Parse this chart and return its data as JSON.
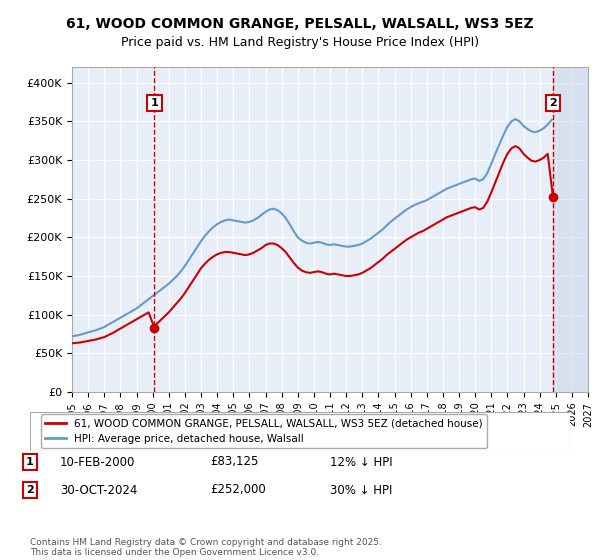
{
  "title": "61, WOOD COMMON GRANGE, PELSALL, WALSALL, WS3 5EZ",
  "subtitle": "Price paid vs. HM Land Registry's House Price Index (HPI)",
  "xlabel": "",
  "ylabel": "",
  "ylim": [
    0,
    420000
  ],
  "yticks": [
    0,
    50000,
    100000,
    150000,
    200000,
    250000,
    300000,
    350000,
    400000
  ],
  "ytick_labels": [
    "£0",
    "£50K",
    "£100K",
    "£150K",
    "£200K",
    "£250K",
    "£300K",
    "£350K",
    "£400K"
  ],
  "xlim_start": 1995.0,
  "xlim_end": 2027.0,
  "bg_color": "#e8eef8",
  "plot_bg": "#e8eef8",
  "grid_color": "#ffffff",
  "sale1_date": 2000.11,
  "sale1_price": 83125,
  "sale1_label": "1",
  "sale2_date": 2024.83,
  "sale2_price": 252000,
  "sale2_label": "2",
  "red_line_color": "#cc0000",
  "blue_line_color": "#6699cc",
  "annotation_box_color": "#cc0000",
  "legend_label_red": "61, WOOD COMMON GRANGE, PELSALL, WALSALL, WS3 5EZ (detached house)",
  "legend_label_blue": "HPI: Average price, detached house, Walsall",
  "footnote1": "1    10-FEB-2000         £83,125         12% ↓ HPI",
  "footnote2": "2    30-OCT-2024         £252,000       30% ↓ HPI",
  "copyright": "Contains HM Land Registry data © Crown copyright and database right 2025.\nThis data is licensed under the Open Government Licence v3.0.",
  "hpi_years": [
    1995.0,
    1995.25,
    1995.5,
    1995.75,
    1996.0,
    1996.25,
    1996.5,
    1996.75,
    1997.0,
    1997.25,
    1997.5,
    1997.75,
    1998.0,
    1998.25,
    1998.5,
    1998.75,
    1999.0,
    1999.25,
    1999.5,
    1999.75,
    2000.0,
    2000.25,
    2000.5,
    2000.75,
    2001.0,
    2001.25,
    2001.5,
    2001.75,
    2002.0,
    2002.25,
    2002.5,
    2002.75,
    2003.0,
    2003.25,
    2003.5,
    2003.75,
    2004.0,
    2004.25,
    2004.5,
    2004.75,
    2005.0,
    2005.25,
    2005.5,
    2005.75,
    2006.0,
    2006.25,
    2006.5,
    2006.75,
    2007.0,
    2007.25,
    2007.5,
    2007.75,
    2008.0,
    2008.25,
    2008.5,
    2008.75,
    2009.0,
    2009.25,
    2009.5,
    2009.75,
    2010.0,
    2010.25,
    2010.5,
    2010.75,
    2011.0,
    2011.25,
    2011.5,
    2011.75,
    2012.0,
    2012.25,
    2012.5,
    2012.75,
    2013.0,
    2013.25,
    2013.5,
    2013.75,
    2014.0,
    2014.25,
    2014.5,
    2014.75,
    2015.0,
    2015.25,
    2015.5,
    2015.75,
    2016.0,
    2016.25,
    2016.5,
    2016.75,
    2017.0,
    2017.25,
    2017.5,
    2017.75,
    2018.0,
    2018.25,
    2018.5,
    2018.75,
    2019.0,
    2019.25,
    2019.5,
    2019.75,
    2020.0,
    2020.25,
    2020.5,
    2020.75,
    2021.0,
    2021.25,
    2021.5,
    2021.75,
    2022.0,
    2022.25,
    2022.5,
    2022.75,
    2023.0,
    2023.25,
    2023.5,
    2023.75,
    2024.0,
    2024.25,
    2024.5,
    2024.75
  ],
  "hpi_values": [
    72000,
    73000,
    74000,
    75500,
    77000,
    78500,
    80000,
    82000,
    84000,
    87000,
    90000,
    93000,
    96000,
    99000,
    102000,
    105000,
    108000,
    112000,
    116000,
    120000,
    124000,
    128000,
    132000,
    136000,
    140000,
    145000,
    150000,
    156000,
    163000,
    171000,
    179000,
    187000,
    195000,
    202000,
    208000,
    213000,
    217000,
    220000,
    222000,
    223000,
    222000,
    221000,
    220000,
    219000,
    220000,
    222000,
    225000,
    229000,
    233000,
    236000,
    237000,
    235000,
    231000,
    225000,
    217000,
    208000,
    200000,
    196000,
    193000,
    192000,
    193000,
    194000,
    193000,
    191000,
    190000,
    191000,
    190000,
    189000,
    188000,
    188000,
    189000,
    190000,
    192000,
    195000,
    198000,
    202000,
    206000,
    210000,
    215000,
    220000,
    224000,
    228000,
    232000,
    236000,
    239000,
    242000,
    244000,
    246000,
    248000,
    251000,
    254000,
    257000,
    260000,
    263000,
    265000,
    267000,
    269000,
    271000,
    273000,
    275000,
    276000,
    273000,
    275000,
    283000,
    295000,
    308000,
    320000,
    332000,
    343000,
    350000,
    353000,
    350000,
    344000,
    340000,
    337000,
    336000,
    338000,
    341000,
    346000,
    352000
  ],
  "red_years": [
    1995.0,
    1995.25,
    1995.5,
    1995.75,
    1996.0,
    1996.25,
    1996.5,
    1996.75,
    1997.0,
    1997.25,
    1997.5,
    1997.75,
    1998.0,
    1998.25,
    1998.5,
    1998.75,
    1999.0,
    1999.25,
    1999.5,
    1999.75,
    2000.11,
    2000.25,
    2000.5,
    2000.75,
    2001.0,
    2001.25,
    2001.5,
    2001.75,
    2002.0,
    2002.25,
    2002.5,
    2002.75,
    2003.0,
    2003.25,
    2003.5,
    2003.75,
    2004.0,
    2004.25,
    2004.5,
    2004.75,
    2005.0,
    2005.25,
    2005.5,
    2005.75,
    2006.0,
    2006.25,
    2006.5,
    2006.75,
    2007.0,
    2007.25,
    2007.5,
    2007.75,
    2008.0,
    2008.25,
    2008.5,
    2008.75,
    2009.0,
    2009.25,
    2009.5,
    2009.75,
    2010.0,
    2010.25,
    2010.5,
    2010.75,
    2011.0,
    2011.25,
    2011.5,
    2011.75,
    2012.0,
    2012.25,
    2012.5,
    2012.75,
    2013.0,
    2013.25,
    2013.5,
    2013.75,
    2014.0,
    2014.25,
    2014.5,
    2014.75,
    2015.0,
    2015.25,
    2015.5,
    2015.75,
    2016.0,
    2016.25,
    2016.5,
    2016.75,
    2017.0,
    2017.25,
    2017.5,
    2017.75,
    2018.0,
    2018.25,
    2018.5,
    2018.75,
    2019.0,
    2019.25,
    2019.5,
    2019.75,
    2020.0,
    2020.25,
    2020.5,
    2020.75,
    2021.0,
    2021.25,
    2021.5,
    2021.75,
    2022.0,
    2022.25,
    2022.5,
    2022.75,
    2023.0,
    2023.25,
    2023.5,
    2023.75,
    2024.0,
    2024.25,
    2024.5,
    2024.83
  ],
  "red_values": [
    63000,
    63500,
    64000,
    65000,
    66000,
    67000,
    68000,
    69500,
    71000,
    73500,
    76000,
    79000,
    82000,
    85000,
    88000,
    91000,
    94000,
    97000,
    100000,
    103000,
    83125,
    88000,
    93000,
    98000,
    103000,
    109000,
    115000,
    121000,
    128000,
    136000,
    144000,
    152000,
    160000,
    166000,
    171000,
    175000,
    178000,
    180000,
    181000,
    181000,
    180000,
    179000,
    178000,
    177000,
    178000,
    180000,
    183000,
    186000,
    190000,
    192000,
    192000,
    190000,
    186000,
    181000,
    174000,
    167000,
    161000,
    157000,
    155000,
    154000,
    155000,
    156000,
    155000,
    153000,
    152000,
    153000,
    152000,
    151000,
    150000,
    150000,
    151000,
    152000,
    154000,
    157000,
    160000,
    164000,
    168000,
    172000,
    177000,
    181000,
    185000,
    189000,
    193000,
    197000,
    200000,
    203000,
    206000,
    208000,
    211000,
    214000,
    217000,
    220000,
    223000,
    226000,
    228000,
    230000,
    232000,
    234000,
    236000,
    238000,
    239000,
    236000,
    238000,
    246000,
    258000,
    271000,
    284000,
    297000,
    308000,
    315000,
    318000,
    315000,
    308000,
    303000,
    299000,
    298000,
    300000,
    303000,
    308000,
    252000
  ]
}
